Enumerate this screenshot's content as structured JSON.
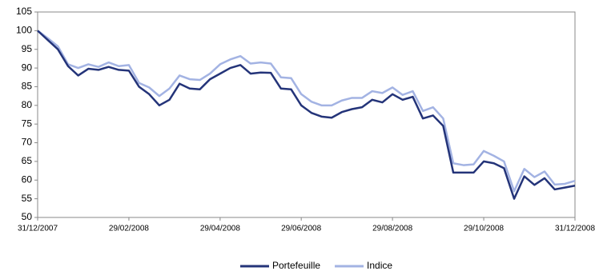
{
  "chart_data": {
    "type": "line",
    "categories": [
      "31/12/2007",
      null,
      null,
      null,
      null,
      null,
      null,
      null,
      null,
      "29/02/2008",
      null,
      null,
      null,
      null,
      null,
      null,
      null,
      null,
      "29/04/2008",
      null,
      null,
      null,
      null,
      null,
      null,
      null,
      "29/06/2008",
      null,
      null,
      null,
      null,
      null,
      null,
      null,
      null,
      "29/08/2008",
      null,
      null,
      null,
      null,
      null,
      null,
      null,
      null,
      "29/10/2008",
      null,
      null,
      null,
      null,
      null,
      null,
      null,
      null,
      "31/12/2008"
    ],
    "series": [
      {
        "name": "Portefeuille",
        "color": "#243479",
        "values": [
          100,
          97.5,
          95,
          90.5,
          88,
          89.8,
          89.5,
          90.3,
          89.5,
          89.3,
          85,
          83,
          80,
          81.5,
          85.8,
          84.5,
          84.3,
          87,
          88.5,
          90,
          90.8,
          88.5,
          88.8,
          88.7,
          84.5,
          84.3,
          80,
          78,
          77,
          76.7,
          78.2,
          79,
          79.5,
          81.5,
          80.8,
          83,
          81.5,
          82.3,
          76.5,
          77.3,
          74.5,
          62,
          62,
          62,
          65,
          64.5,
          63.2,
          55,
          61,
          58.7,
          60.5,
          57.5,
          58,
          58.5
        ]
      },
      {
        "name": "Indice",
        "color": "#a3b3e3",
        "values": [
          100,
          98,
          95.8,
          91,
          90,
          91,
          90.3,
          91.5,
          90.5,
          90.8,
          86,
          84.8,
          82.5,
          84.5,
          88,
          87,
          86.8,
          88.5,
          91,
          92.3,
          93.2,
          91.2,
          91.5,
          91.2,
          87.5,
          87.3,
          83,
          81,
          80,
          80,
          81.3,
          82,
          82,
          83.8,
          83.3,
          84.8,
          82.8,
          83.8,
          78.5,
          79.5,
          76.5,
          64.5,
          64,
          64.2,
          67.8,
          66.5,
          65,
          57,
          63,
          60.8,
          62.3,
          58.8,
          59,
          59.8
        ]
      }
    ],
    "ylim": [
      50,
      105
    ],
    "yticks": [
      50,
      55,
      60,
      65,
      70,
      75,
      80,
      85,
      90,
      95,
      100,
      105
    ],
    "grid": false
  }
}
